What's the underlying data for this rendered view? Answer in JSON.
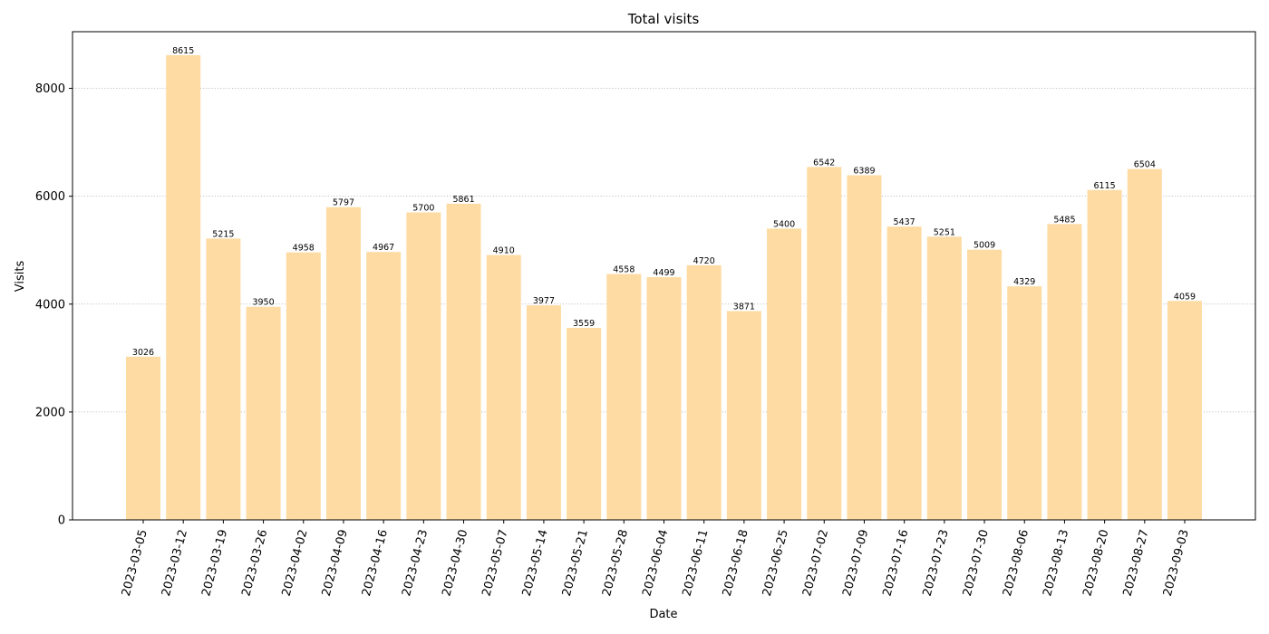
{
  "chart_data": {
    "type": "bar",
    "title": "Total visits",
    "xlabel": "Date",
    "ylabel": "Visits",
    "ylim": [
      0,
      9050
    ],
    "yticks": [
      0,
      2000,
      4000,
      6000,
      8000
    ],
    "grid": "y-dotted",
    "bar_color": "#FDDBA2",
    "categories": [
      "2023-03-05",
      "2023-03-12",
      "2023-03-19",
      "2023-03-26",
      "2023-04-02",
      "2023-04-09",
      "2023-04-16",
      "2023-04-23",
      "2023-04-30",
      "2023-05-07",
      "2023-05-14",
      "2023-05-21",
      "2023-05-28",
      "2023-06-04",
      "2023-06-11",
      "2023-06-18",
      "2023-06-25",
      "2023-07-02",
      "2023-07-09",
      "2023-07-16",
      "2023-07-23",
      "2023-07-30",
      "2023-08-06",
      "2023-08-13",
      "2023-08-20",
      "2023-08-27",
      "2023-09-03"
    ],
    "values": [
      3026,
      8615,
      5215,
      3950,
      4958,
      5797,
      4967,
      5700,
      5861,
      4910,
      3977,
      3559,
      4558,
      4499,
      4720,
      3871,
      5400,
      6542,
      6389,
      5437,
      5251,
      5009,
      4329,
      5485,
      6115,
      6504,
      4059
    ]
  }
}
